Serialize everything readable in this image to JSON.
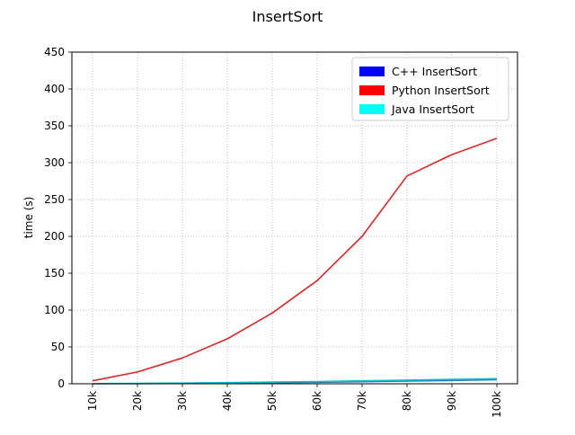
{
  "chart_data": {
    "type": "line",
    "title": "InsertSort",
    "xlabel": "",
    "ylabel": "time (s)",
    "categories": [
      "10k",
      "20k",
      "30k",
      "40k",
      "50k",
      "60k",
      "70k",
      "80k",
      "90k",
      "100k"
    ],
    "ylim": [
      0,
      450
    ],
    "yticks": [
      "0",
      "50",
      "100",
      "150",
      "200",
      "250",
      "300",
      "350",
      "400",
      "450"
    ],
    "grid": true,
    "legend_position": "top-right",
    "series": [
      {
        "name": "C++ InsertSort",
        "legend_color": "#0000ff",
        "line_color": "#1f77b4",
        "values": [
          0.1,
          0.3,
          0.6,
          1.0,
          1.5,
          2.1,
          2.8,
          3.6,
          4.5,
          5.5
        ]
      },
      {
        "name": "Python InsertSort",
        "legend_color": "#ff0000",
        "line_color": "#d62728",
        "values": [
          4,
          16,
          35,
          61,
          96,
          140,
          200,
          282,
          311,
          333
        ]
      },
      {
        "name": "Java InsertSort",
        "legend_color": "#00ffff",
        "line_color": "#17becf",
        "values": [
          0.2,
          0.5,
          1.0,
          1.6,
          2.3,
          3.1,
          4.0,
          5.0,
          6.0,
          7.0
        ]
      }
    ]
  }
}
